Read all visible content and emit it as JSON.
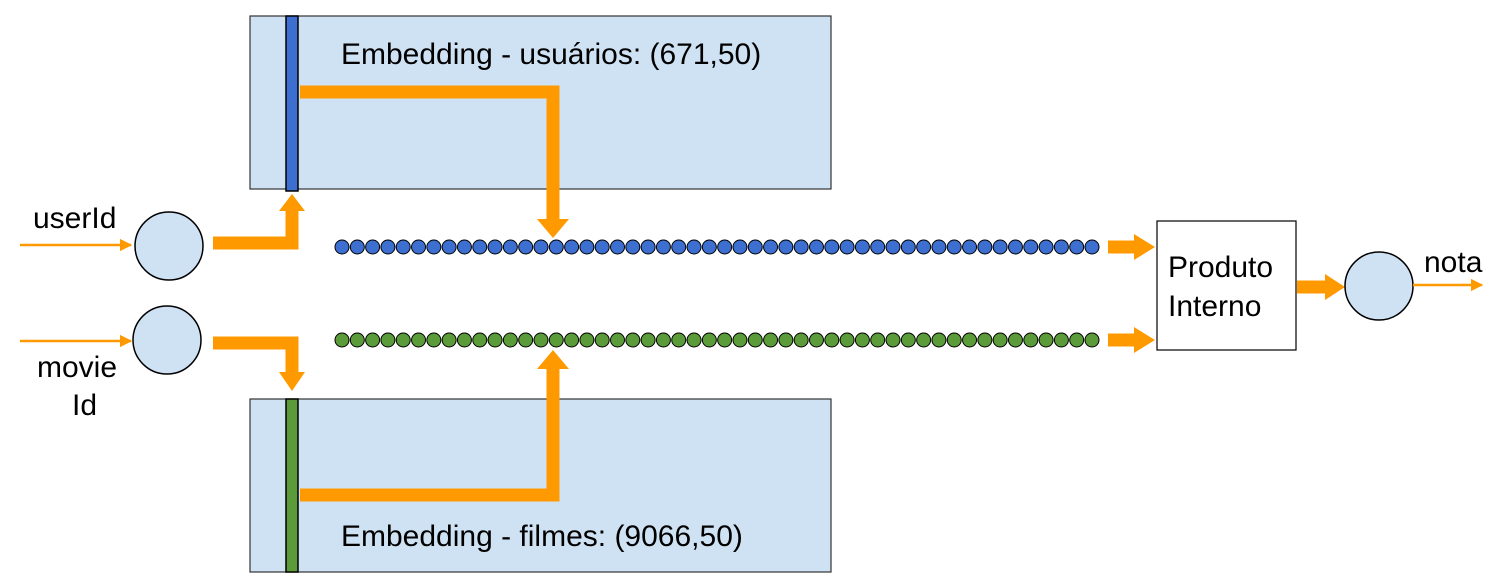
{
  "embedding_users": {
    "label": "Embedding - usuários: (671,50)",
    "dims": "671,50"
  },
  "embedding_movies": {
    "label": "Embedding - filmes: (9066,50)",
    "dims": "9066,50"
  },
  "inputs": {
    "user": "userId",
    "movie_line1": "movie",
    "movie_line2": "Id"
  },
  "dot_product": {
    "line1": "Produto",
    "line2": "Interno"
  },
  "output": "nota",
  "vector_length": 50,
  "colors": {
    "box_fill": "#cfe2f3",
    "user_vector": "#3d6fd1",
    "movie_vector": "#5c9b3a",
    "arrow": "#ff9900",
    "node_fill": "#cfe2f3"
  }
}
